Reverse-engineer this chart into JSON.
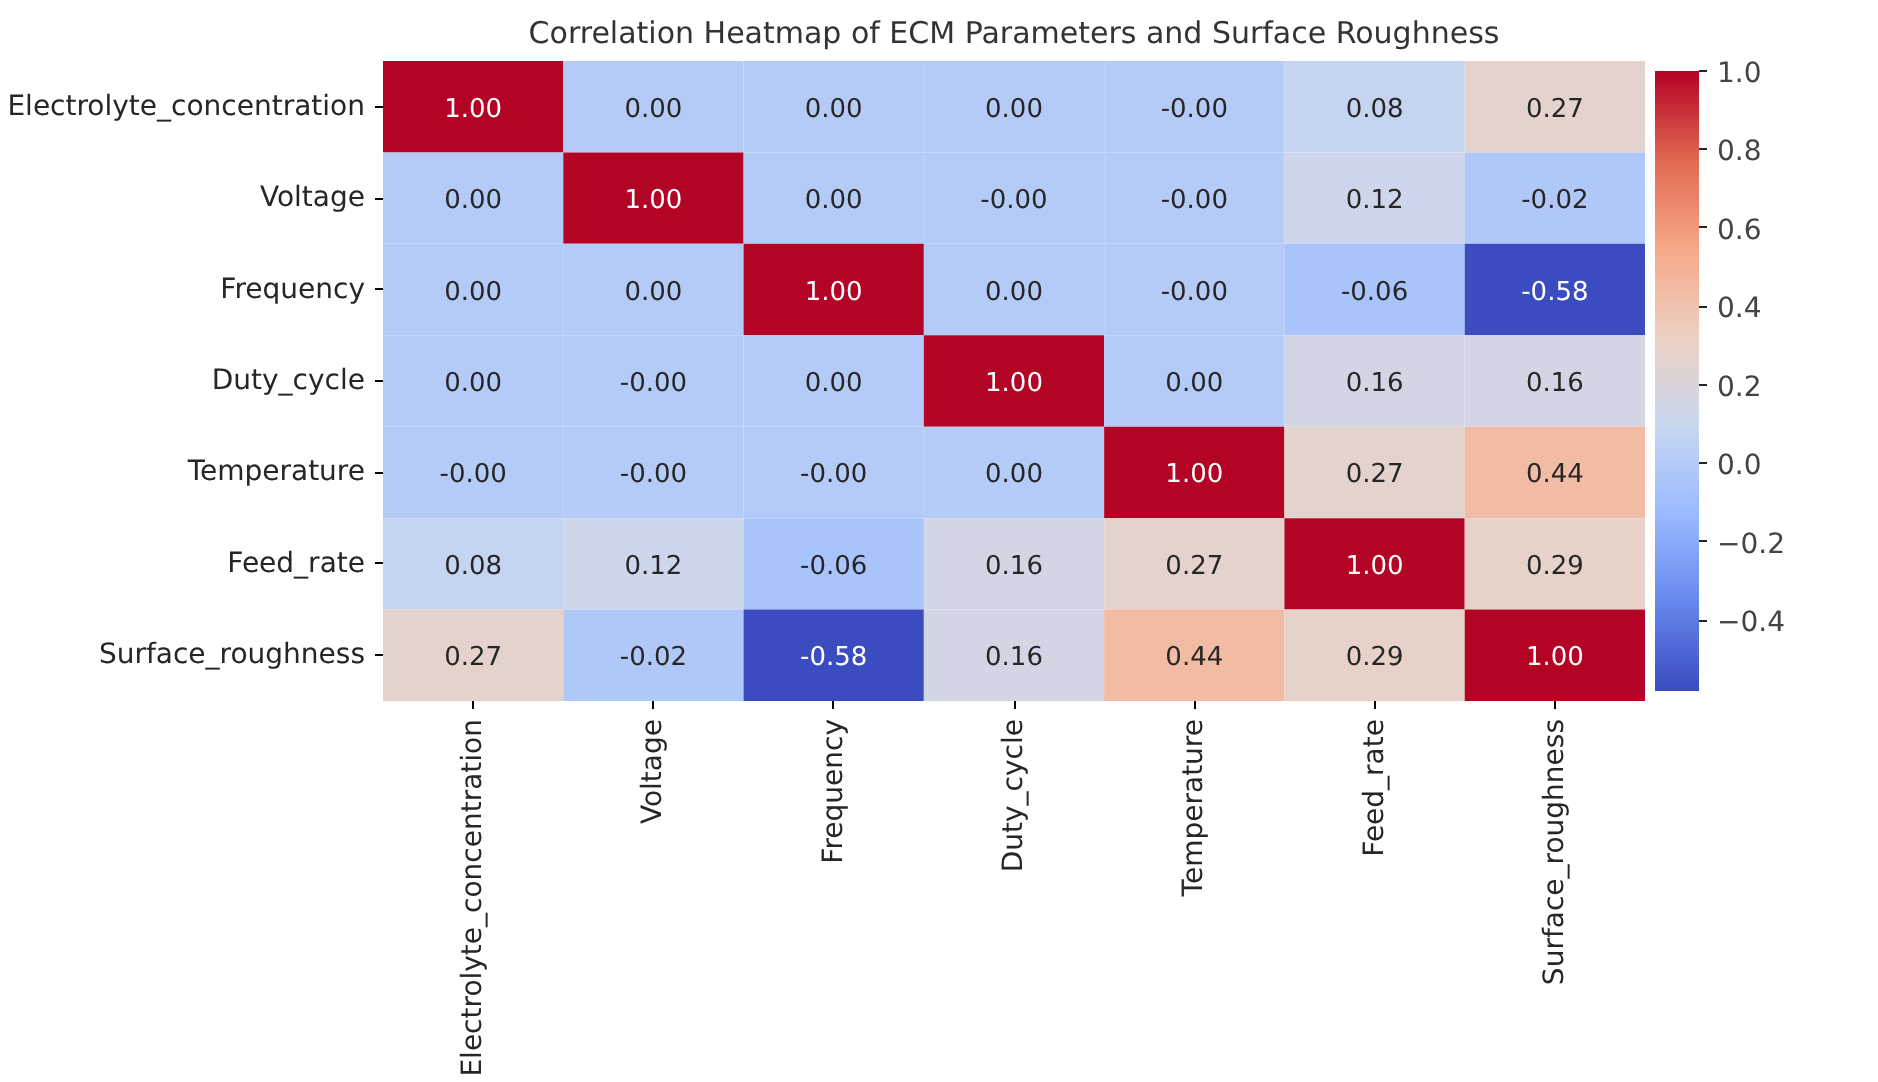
{
  "chart_data": {
    "type": "heatmap",
    "title": "Correlation Heatmap of ECM Parameters and Surface Roughness",
    "categories": [
      "Electrolyte_concentration",
      "Voltage",
      "Frequency",
      "Duty_cycle",
      "Temperature",
      "Feed_rate",
      "Surface_roughness"
    ],
    "y_categories": [
      "Electrolyte_concentration",
      "Voltage",
      "Frequency",
      "Duty_cycle",
      "Temperature",
      "Feed_rate",
      "Surface_roughness"
    ],
    "cells": [
      [
        1.0,
        0.0,
        0.0,
        0.0,
        0.0,
        0.08,
        0.27
      ],
      [
        0.0,
        1.0,
        0.0,
        0.0,
        0.0,
        0.12,
        -0.02
      ],
      [
        0.0,
        0.0,
        1.0,
        0.0,
        0.0,
        -0.06,
        -0.58
      ],
      [
        0.0,
        0.0,
        0.0,
        1.0,
        0.0,
        0.16,
        0.16
      ],
      [
        0.0,
        0.0,
        0.0,
        0.0,
        1.0,
        0.27,
        0.44
      ],
      [
        0.08,
        0.12,
        -0.06,
        0.16,
        0.27,
        1.0,
        0.29
      ],
      [
        0.27,
        -0.02,
        -0.58,
        0.16,
        0.44,
        0.29,
        1.0
      ]
    ],
    "cell_labels": [
      [
        "1.00",
        "0.00",
        "0.00",
        "0.00",
        "-0.00",
        "0.08",
        "0.27"
      ],
      [
        "0.00",
        "1.00",
        "0.00",
        "-0.00",
        "-0.00",
        "0.12",
        "-0.02"
      ],
      [
        "0.00",
        "0.00",
        "1.00",
        "0.00",
        "-0.00",
        "-0.06",
        "-0.58"
      ],
      [
        "0.00",
        "-0.00",
        "0.00",
        "1.00",
        "0.00",
        "0.16",
        "0.16"
      ],
      [
        "-0.00",
        "-0.00",
        "-0.00",
        "0.00",
        "1.00",
        "0.27",
        "0.44"
      ],
      [
        "0.08",
        "0.12",
        "-0.06",
        "0.16",
        "0.27",
        "1.00",
        "0.29"
      ],
      [
        "0.27",
        "-0.02",
        "-0.58",
        "0.16",
        "0.44",
        "0.29",
        "1.00"
      ]
    ],
    "clim": [
      -0.58,
      1.0
    ],
    "cticks": [
      {
        "value": -0.4,
        "label": "−0.4"
      },
      {
        "value": -0.2,
        "label": "−0.2"
      },
      {
        "value": 0.0,
        "label": "0.0"
      },
      {
        "value": 0.2,
        "label": "0.2"
      },
      {
        "value": 0.4,
        "label": "0.4"
      },
      {
        "value": 0.6,
        "label": "0.6"
      },
      {
        "value": 0.8,
        "label": "0.8"
      },
      {
        "value": 1.0,
        "label": "1.0"
      }
    ]
  }
}
